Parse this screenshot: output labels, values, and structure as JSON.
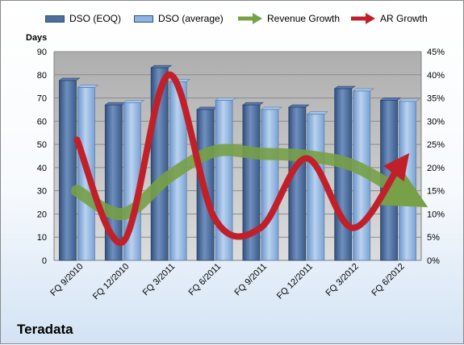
{
  "chart_data": {
    "type": "bar",
    "title": "",
    "company": "Teradata",
    "ylabel": "Days",
    "ylim": [
      0,
      90
    ],
    "y_ticks": [
      "0",
      "10",
      "20",
      "30",
      "40",
      "50",
      "60",
      "70",
      "80",
      "90"
    ],
    "y2lim": [
      0,
      45
    ],
    "y2_ticks": [
      "0%",
      "5%",
      "10%",
      "15%",
      "20%",
      "25%",
      "30%",
      "35%",
      "40%",
      "45%"
    ],
    "categories": [
      "FQ 9/2010",
      "FQ 12/2010",
      "FQ 3/2011",
      "FQ 6/2011",
      "FQ 9/2011",
      "FQ 12/2011",
      "FQ 3/2012",
      "FQ 6/2012"
    ],
    "series": [
      {
        "name": "DSO (EOQ)",
        "kind": "bar",
        "axis": "left",
        "color": "#4e6e9c",
        "values": [
          77.5,
          67,
          83,
          65,
          67,
          66,
          74,
          69
        ]
      },
      {
        "name": "DSO (average)",
        "kind": "bar",
        "axis": "left",
        "color": "#8eb4e3",
        "values": [
          74.5,
          68,
          77,
          69,
          65,
          63,
          73,
          68.5
        ]
      },
      {
        "name": "Revenue Growth",
        "kind": "line",
        "axis": "right",
        "color": "#77a047",
        "values": [
          15,
          10,
          18,
          23.5,
          23,
          22.5,
          20.5,
          15
        ]
      },
      {
        "name": "AR Growth",
        "kind": "line",
        "axis": "right",
        "color": "#c0202a",
        "values": [
          26,
          4,
          40,
          9,
          7,
          22,
          7,
          20
        ]
      }
    ],
    "legend_position": "top",
    "grid": true
  }
}
